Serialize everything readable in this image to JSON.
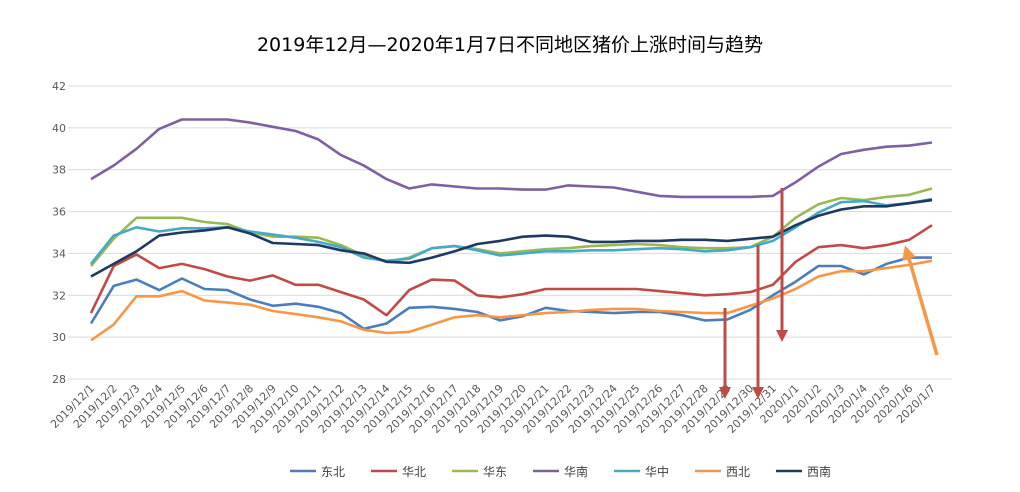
{
  "chart_data": {
    "type": "line",
    "title": "2019年12月—2020年1月7日不同地区猪价上涨时间与趋势",
    "xlabel": "",
    "ylabel": "",
    "ylim": [
      28,
      42
    ],
    "yticks": [
      28,
      30,
      32,
      34,
      36,
      38,
      40,
      42
    ],
    "grid": true,
    "legend_position": "bottom",
    "categories": [
      "2019/12/1",
      "2019/12/2",
      "2019/12/3",
      "2019/12/4",
      "2019/12/5",
      "2019/12/6",
      "2019/12/7",
      "2019/12/8",
      "2019/12/9",
      "2019/12/10",
      "2019/12/11",
      "2019/12/12",
      "2019/12/13",
      "2019/12/14",
      "2019/12/15",
      "2019/12/16",
      "2019/12/17",
      "2019/12/18",
      "2019/12/19",
      "2019/12/20",
      "2019/12/21",
      "2019/12/22",
      "2019/12/23",
      "2019/12/24",
      "2019/12/25",
      "2019/12/26",
      "2019/12/27",
      "2019/12/28",
      "2019/12/29",
      "2019/12/30",
      "2019/12/31",
      "2020/1/1",
      "2020/1/2",
      "2020/1/3",
      "2020/1/4",
      "2020/1/5",
      "2020/1/6",
      "2020/1/7"
    ],
    "series": [
      {
        "name": "东北",
        "color": "#4a7ebb",
        "values": [
          30.65,
          32.45,
          32.75,
          32.25,
          32.8,
          32.3,
          32.25,
          31.8,
          31.5,
          31.6,
          31.45,
          31.15,
          30.4,
          30.65,
          31.4,
          31.45,
          31.35,
          31.2,
          30.8,
          31.0,
          31.4,
          31.25,
          31.2,
          31.15,
          31.2,
          31.2,
          31.05,
          30.8,
          30.85,
          31.3,
          32.0,
          32.65,
          33.4,
          33.4,
          33.0,
          33.5,
          33.8,
          33.8
        ]
      },
      {
        "name": "华北",
        "color": "#be4b48",
        "values": [
          31.15,
          33.4,
          33.95,
          33.3,
          33.5,
          33.25,
          32.9,
          32.7,
          32.95,
          32.5,
          32.5,
          32.15,
          31.8,
          31.05,
          32.25,
          32.75,
          32.7,
          32.0,
          31.9,
          32.05,
          32.3,
          32.3,
          32.3,
          32.3,
          32.3,
          32.2,
          32.1,
          32.0,
          32.05,
          32.15,
          32.5,
          33.6,
          34.3,
          34.4,
          34.25,
          34.4,
          34.65,
          35.35
        ]
      },
      {
        "name": "华东",
        "color": "#98b954",
        "values": [
          33.4,
          34.7,
          35.7,
          35.7,
          35.7,
          35.5,
          35.4,
          35.0,
          34.8,
          34.8,
          34.75,
          34.4,
          33.9,
          33.6,
          33.8,
          34.25,
          34.35,
          34.2,
          34.0,
          34.1,
          34.2,
          34.25,
          34.35,
          34.4,
          34.45,
          34.4,
          34.3,
          34.25,
          34.25,
          34.3,
          34.8,
          35.7,
          36.35,
          36.65,
          36.55,
          36.7,
          36.8,
          37.1
        ]
      },
      {
        "name": "华南",
        "color": "#7d60a0",
        "values": [
          37.55,
          38.2,
          39.0,
          39.95,
          40.4,
          40.4,
          40.4,
          40.25,
          40.05,
          39.85,
          39.45,
          38.7,
          38.2,
          37.55,
          37.1,
          37.3,
          37.2,
          37.1,
          37.1,
          37.05,
          37.05,
          37.25,
          37.2,
          37.15,
          36.95,
          36.75,
          36.7,
          36.7,
          36.7,
          36.7,
          36.75,
          37.4,
          38.15,
          38.75,
          38.95,
          39.1,
          39.15,
          39.3
        ]
      },
      {
        "name": "华中",
        "color": "#46aac5",
        "values": [
          33.5,
          34.85,
          35.25,
          35.05,
          35.2,
          35.2,
          35.25,
          35.05,
          34.9,
          34.75,
          34.55,
          34.3,
          33.8,
          33.65,
          33.75,
          34.25,
          34.35,
          34.15,
          33.9,
          34.0,
          34.1,
          34.1,
          34.15,
          34.15,
          34.2,
          34.25,
          34.2,
          34.1,
          34.15,
          34.3,
          34.6,
          35.25,
          35.95,
          36.45,
          36.5,
          36.3,
          36.4,
          36.6
        ]
      },
      {
        "name": "西北",
        "color": "#f79646",
        "values": [
          29.85,
          30.6,
          31.95,
          31.95,
          32.2,
          31.75,
          31.65,
          31.55,
          31.25,
          31.1,
          30.95,
          30.75,
          30.35,
          30.2,
          30.25,
          30.6,
          30.95,
          31.05,
          30.95,
          31.05,
          31.15,
          31.2,
          31.3,
          31.35,
          31.35,
          31.25,
          31.2,
          31.15,
          31.15,
          31.5,
          31.85,
          32.3,
          32.9,
          33.15,
          33.15,
          33.3,
          33.45,
          33.65
        ]
      },
      {
        "name": "西南",
        "color": "#1f3a60",
        "values": [
          32.9,
          33.5,
          34.1,
          34.85,
          35.0,
          35.1,
          35.25,
          34.95,
          34.5,
          34.45,
          34.4,
          34.15,
          34.0,
          33.6,
          33.55,
          33.8,
          34.1,
          34.45,
          34.6,
          34.8,
          34.85,
          34.8,
          34.55,
          34.55,
          34.6,
          34.6,
          34.65,
          34.65,
          34.6,
          34.7,
          34.8,
          35.35,
          35.8,
          36.1,
          36.25,
          36.25,
          36.4,
          36.55
        ]
      }
    ],
    "annotations": [
      {
        "type": "arrow",
        "color": "#be4b48",
        "direction": "down",
        "category": "2019/12/29"
      },
      {
        "type": "arrow",
        "color": "#be4b48",
        "direction": "down",
        "category": "2019/12/30"
      },
      {
        "type": "arrow",
        "color": "#be4b48",
        "direction": "down",
        "category": "2019/12/31"
      },
      {
        "type": "arrow",
        "color": "#f79646",
        "direction": "up",
        "category": "2020/1/6"
      }
    ]
  }
}
